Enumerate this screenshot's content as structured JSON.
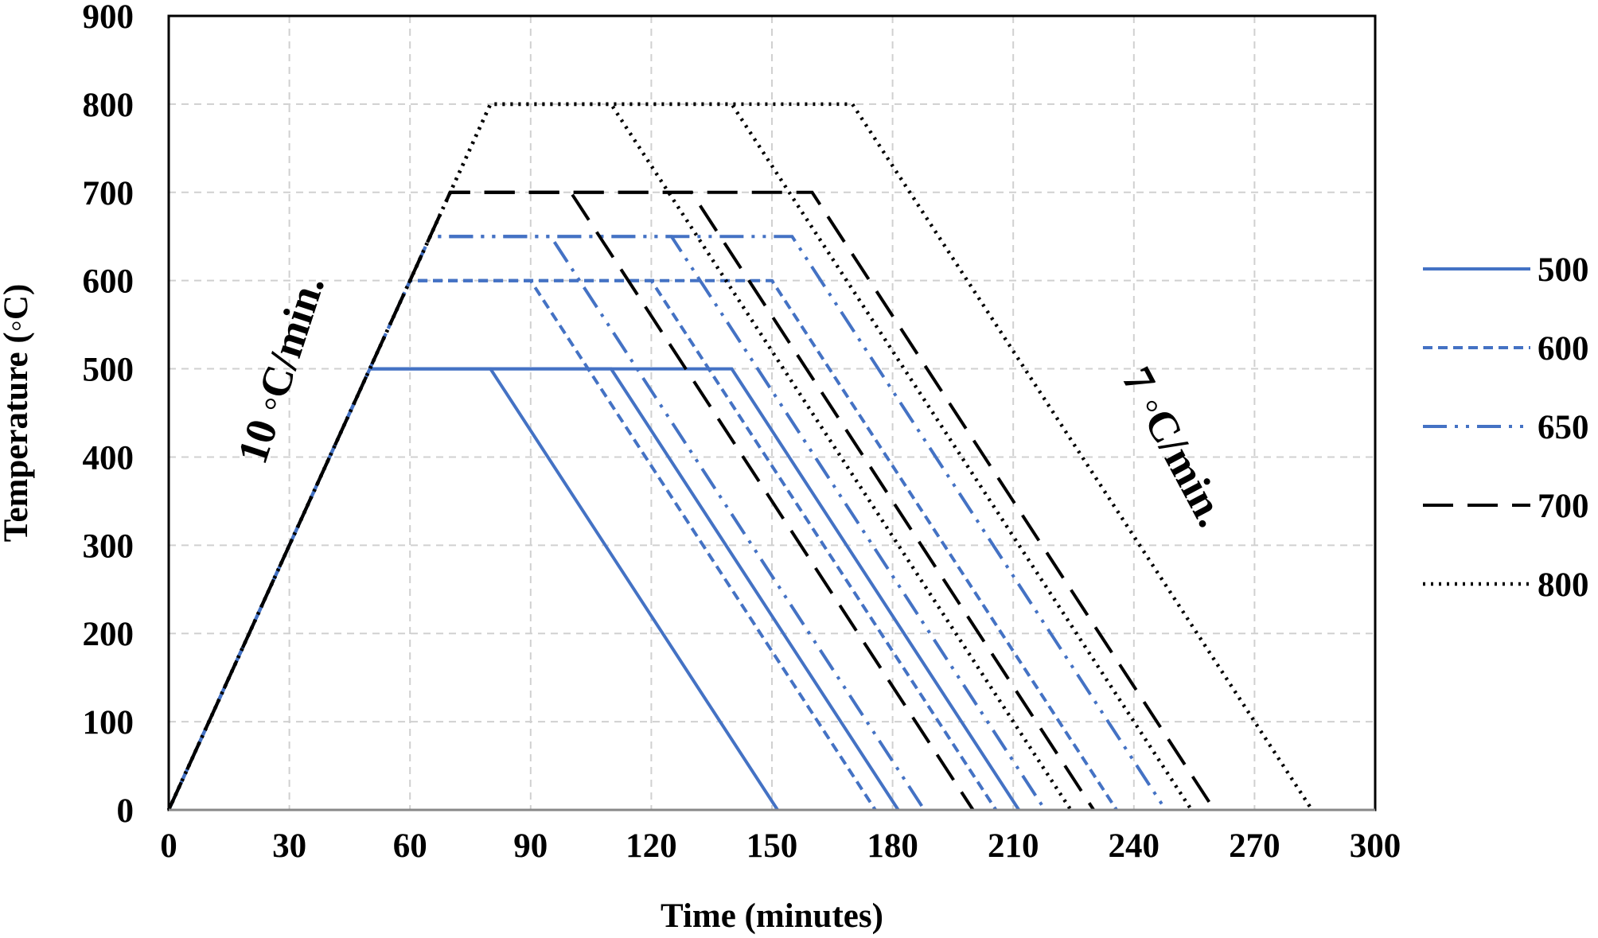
{
  "chart_data": {
    "type": "line",
    "title": "",
    "xlabel": "Time (minutes)",
    "ylabel": "Temperature (◦C)",
    "xlim": [
      0,
      300
    ],
    "ylim": [
      0,
      900
    ],
    "xticks": [
      "0",
      "30",
      "60",
      "90",
      "120",
      "150",
      "180",
      "210",
      "240",
      "270",
      "300"
    ],
    "yticks": [
      "0",
      "100",
      "200",
      "300",
      "400",
      "500",
      "600",
      "700",
      "800",
      "900"
    ],
    "grid": true,
    "legend_position": "right",
    "annotations": [
      {
        "text": "10 ◦C/min."
      },
      {
        "text": "7 ◦C/min."
      }
    ],
    "series": [
      {
        "name": "500",
        "color": "#4472C4",
        "style": "solid",
        "curves": [
          [
            [
              0,
              0
            ],
            [
              50,
              500
            ],
            [
              80,
              500
            ],
            [
              151.4,
              0
            ]
          ],
          [
            [
              0,
              0
            ],
            [
              50,
              500
            ],
            [
              110,
              500
            ],
            [
              181.4,
              0
            ]
          ],
          [
            [
              0,
              0
            ],
            [
              50,
              500
            ],
            [
              140,
              500
            ],
            [
              211.4,
              0
            ]
          ]
        ]
      },
      {
        "name": "600",
        "color": "#4472C4",
        "style": "short-dash",
        "curves": [
          [
            [
              0,
              0
            ],
            [
              60,
              600
            ],
            [
              90,
              600
            ],
            [
              175.7,
              0
            ]
          ],
          [
            [
              0,
              0
            ],
            [
              60,
              600
            ],
            [
              120,
              600
            ],
            [
              205.7,
              0
            ]
          ],
          [
            [
              0,
              0
            ],
            [
              60,
              600
            ],
            [
              150,
              600
            ],
            [
              235.7,
              0
            ]
          ]
        ]
      },
      {
        "name": "650",
        "color": "#4472C4",
        "style": "dash-dot-dot",
        "curves": [
          [
            [
              0,
              0
            ],
            [
              65,
              650
            ],
            [
              95,
              650
            ],
            [
              187.9,
              0
            ]
          ],
          [
            [
              0,
              0
            ],
            [
              65,
              650
            ],
            [
              125,
              650
            ],
            [
              217.9,
              0
            ]
          ],
          [
            [
              0,
              0
            ],
            [
              65,
              650
            ],
            [
              155,
              650
            ],
            [
              247.9,
              0
            ]
          ]
        ]
      },
      {
        "name": "700",
        "color": "#000000",
        "style": "long-dash",
        "curves": [
          [
            [
              0,
              0
            ],
            [
              70,
              700
            ],
            [
              100,
              700
            ],
            [
              200,
              0
            ]
          ],
          [
            [
              0,
              0
            ],
            [
              70,
              700
            ],
            [
              130,
              700
            ],
            [
              230,
              0
            ]
          ],
          [
            [
              0,
              0
            ],
            [
              70,
              700
            ],
            [
              160,
              700
            ],
            [
              260,
              0
            ]
          ]
        ]
      },
      {
        "name": "800",
        "color": "#000000",
        "style": "dotted",
        "curves": [
          [
            [
              0,
              0
            ],
            [
              80,
              800
            ],
            [
              110,
              800
            ],
            [
              224.3,
              0
            ]
          ],
          [
            [
              0,
              0
            ],
            [
              80,
              800
            ],
            [
              140,
              800
            ],
            [
              254.3,
              0
            ]
          ],
          [
            [
              0,
              0
            ],
            [
              80,
              800
            ],
            [
              170,
              800
            ],
            [
              284.3,
              0
            ]
          ]
        ]
      }
    ]
  }
}
